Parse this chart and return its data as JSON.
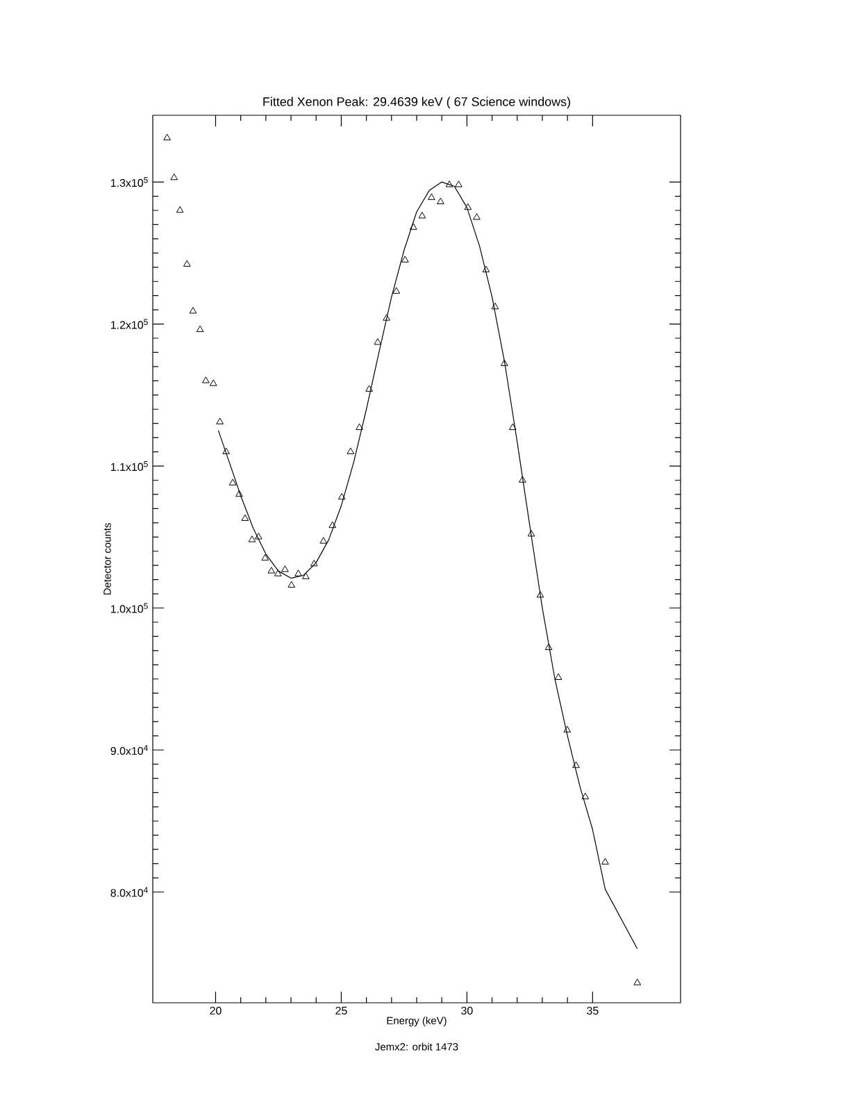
{
  "chart_data": {
    "type": "scatter",
    "title": "Fitted Xenon Peak: 29.4639 keV ( 67 Science windows)",
    "xlabel": "Energy (keV)",
    "ylabel": "Detector counts",
    "annotations": [
      "Jemx2: orbit 1473"
    ],
    "xlim": [
      17.5,
      38.5
    ],
    "ylim": [
      72200,
      134700
    ],
    "xticks": [
      20,
      25,
      30,
      35
    ],
    "yticks": [
      {
        "value": 80000,
        "label": "8.0x10$^{4}$"
      },
      {
        "value": 90000,
        "label": "9.0x10$^{4}$"
      },
      {
        "value": 100000,
        "label": "1.0x10$^{5}$"
      },
      {
        "value": 110000,
        "label": "1.1x10$^{5}$"
      },
      {
        "value": 120000,
        "label": "1.2x10$^{5}$"
      },
      {
        "value": 130000,
        "label": "1.3x10$^{5}$"
      }
    ],
    "grid": false,
    "series": [
      {
        "color": "#000000",
        "marker": "triangle",
        "x": [
          18.07,
          18.35,
          18.58,
          18.86,
          19.1,
          19.38,
          19.61,
          19.91,
          20.17,
          20.42,
          20.68,
          20.94,
          21.17,
          21.45,
          21.71,
          21.97,
          22.22,
          22.48,
          22.76,
          23.02,
          23.29,
          23.59,
          23.92,
          24.29,
          24.65,
          25.02,
          25.37,
          25.72,
          26.11,
          26.45,
          26.8,
          27.19,
          27.54,
          27.87,
          28.22,
          28.59,
          28.95,
          29.3,
          29.67,
          30.04,
          30.39,
          30.76,
          31.12,
          31.49,
          31.82,
          32.21,
          32.56,
          32.92,
          33.25,
          33.64,
          33.99,
          34.34,
          34.71,
          35.5,
          36.78
        ],
        "values": [
          133100,
          130300,
          128000,
          124200,
          120900,
          119600,
          116000,
          115800,
          113100,
          111000,
          108800,
          108000,
          106300,
          104800,
          105000,
          103500,
          102600,
          102400,
          102700,
          101600,
          102400,
          102200,
          103100,
          104700,
          105800,
          107800,
          111000,
          112700,
          115400,
          118700,
          120400,
          122300,
          124500,
          126800,
          127600,
          128900,
          128600,
          129800,
          129800,
          128200,
          127500,
          123800,
          121200,
          117200,
          112700,
          109000,
          105200,
          100900,
          97200,
          95100,
          91400,
          88900,
          86700,
          82100,
          73600
        ]
      },
      {
        "type": "line",
        "color": "#000000",
        "marker": "none",
        "line_style": "solid",
        "x": [
          20.11,
          20.5,
          21.0,
          21.5,
          22.0,
          22.5,
          23.0,
          23.5,
          24.0,
          24.5,
          25.0,
          25.5,
          26.0,
          26.5,
          27.0,
          27.5,
          28.0,
          28.5,
          29.0,
          29.5,
          30.0,
          30.5,
          31.0,
          31.5,
          32.0,
          32.5,
          33.0,
          33.5,
          34.0,
          34.5,
          35.0,
          35.5,
          36.78
        ],
        "values": [
          112500,
          110500,
          107900,
          105600,
          103800,
          102600,
          102100,
          102300,
          103200,
          104800,
          107200,
          110300,
          114000,
          118000,
          121900,
          125200,
          127900,
          129400,
          130000,
          129700,
          128200,
          125500,
          121900,
          117300,
          111700,
          105800,
          100000,
          95000,
          91000,
          87400,
          84400,
          80200,
          76000
        ]
      }
    ]
  }
}
